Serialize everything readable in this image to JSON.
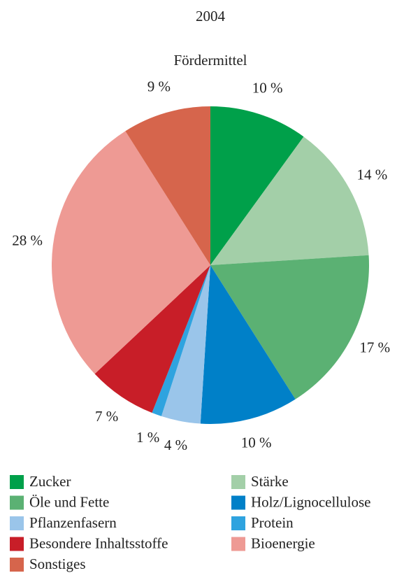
{
  "chart_data": {
    "type": "pie",
    "title": "2004",
    "subtitle": "Fördermittel",
    "categories": [
      "Zucker",
      "Stärke",
      "Öle und Fette",
      "Holz/Lignocellulose",
      "Pflanzenfasern",
      "Protein",
      "Besondere Inhaltsstoffe",
      "Bioenergie",
      "Sonstiges"
    ],
    "values": [
      10,
      14,
      17,
      10,
      4,
      1,
      7,
      28,
      9
    ],
    "value_labels": [
      "10 %",
      "14 %",
      "17 %",
      "10 %",
      "4 %",
      "1 %",
      "7 %",
      "28 %",
      "9 %"
    ],
    "colors": [
      "#00a04a",
      "#a3cfa8",
      "#5bb173",
      "#0080c8",
      "#9ac5ea",
      "#2fa3df",
      "#c81e28",
      "#ee9a94",
      "#d6654c"
    ],
    "legend": "bottom"
  }
}
